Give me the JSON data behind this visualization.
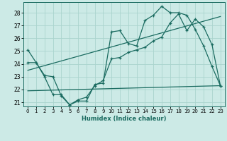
{
  "xlabel": "Humidex (Indice chaleur)",
  "bg_color": "#cceae6",
  "grid_color": "#aad4ce",
  "line_color": "#1a6b60",
  "xlim": [
    -0.5,
    23.5
  ],
  "ylim": [
    20.7,
    28.8
  ],
  "yticks": [
    21,
    22,
    23,
    24,
    25,
    26,
    27,
    28
  ],
  "xticks": [
    0,
    1,
    2,
    3,
    4,
    5,
    6,
    7,
    8,
    9,
    10,
    11,
    12,
    13,
    14,
    15,
    16,
    17,
    18,
    19,
    20,
    21,
    22,
    23
  ],
  "series1_x": [
    0,
    1,
    2,
    3,
    4,
    5,
    6,
    7,
    8,
    9,
    10,
    11,
    12,
    13,
    14,
    15,
    16,
    17,
    18,
    19,
    20,
    21,
    22,
    23
  ],
  "series1_y": [
    25.1,
    24.1,
    23.0,
    21.6,
    21.6,
    20.8,
    21.1,
    21.1,
    22.4,
    22.5,
    26.5,
    26.6,
    25.6,
    25.4,
    27.4,
    27.8,
    28.5,
    28.0,
    28.0,
    27.8,
    26.7,
    25.4,
    23.8,
    22.3
  ],
  "series2_x": [
    0,
    1,
    2,
    3,
    4,
    5,
    6,
    7,
    8,
    9,
    10,
    11,
    12,
    13,
    14,
    15,
    16,
    17,
    18,
    19,
    20,
    21,
    22,
    23
  ],
  "series2_y": [
    24.1,
    24.1,
    23.1,
    23.0,
    21.5,
    20.8,
    21.2,
    21.4,
    22.3,
    22.7,
    24.4,
    24.5,
    24.9,
    25.1,
    25.3,
    25.8,
    26.1,
    27.2,
    27.9,
    26.6,
    27.5,
    26.9,
    25.5,
    22.3
  ],
  "trend1_x": [
    0,
    23
  ],
  "trend1_y": [
    23.5,
    27.7
  ],
  "trend2_x": [
    0,
    23
  ],
  "trend2_y": [
    21.9,
    22.3
  ]
}
